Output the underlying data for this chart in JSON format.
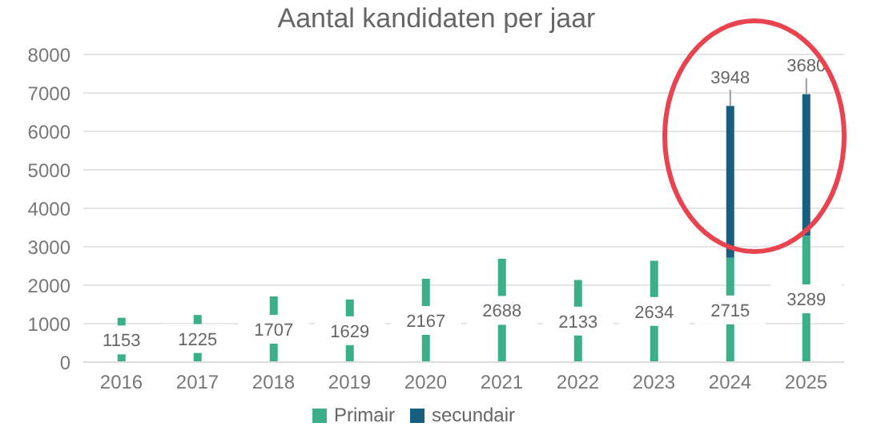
{
  "chart_data": {
    "type": "bar",
    "title": "Aantal kandidaten per jaar",
    "categories": [
      "2016",
      "2017",
      "2018",
      "2019",
      "2020",
      "2021",
      "2022",
      "2023",
      "2024",
      "2025"
    ],
    "series": [
      {
        "name": "Primair",
        "color": "#3aaf8a",
        "values": [
          1153,
          1225,
          1707,
          1629,
          2167,
          2688,
          2133,
          2634,
          2715,
          3289
        ]
      },
      {
        "name": "secundair",
        "color": "#175f80",
        "values": [
          null,
          null,
          null,
          null,
          null,
          null,
          null,
          null,
          3948,
          3680
        ]
      }
    ],
    "stacked": true,
    "ylim": [
      0,
      8000
    ],
    "yticks": [
      0,
      1000,
      2000,
      3000,
      4000,
      5000,
      6000,
      7000,
      8000
    ],
    "grid": "y",
    "legend": "bottom",
    "data_labels": true
  }
}
